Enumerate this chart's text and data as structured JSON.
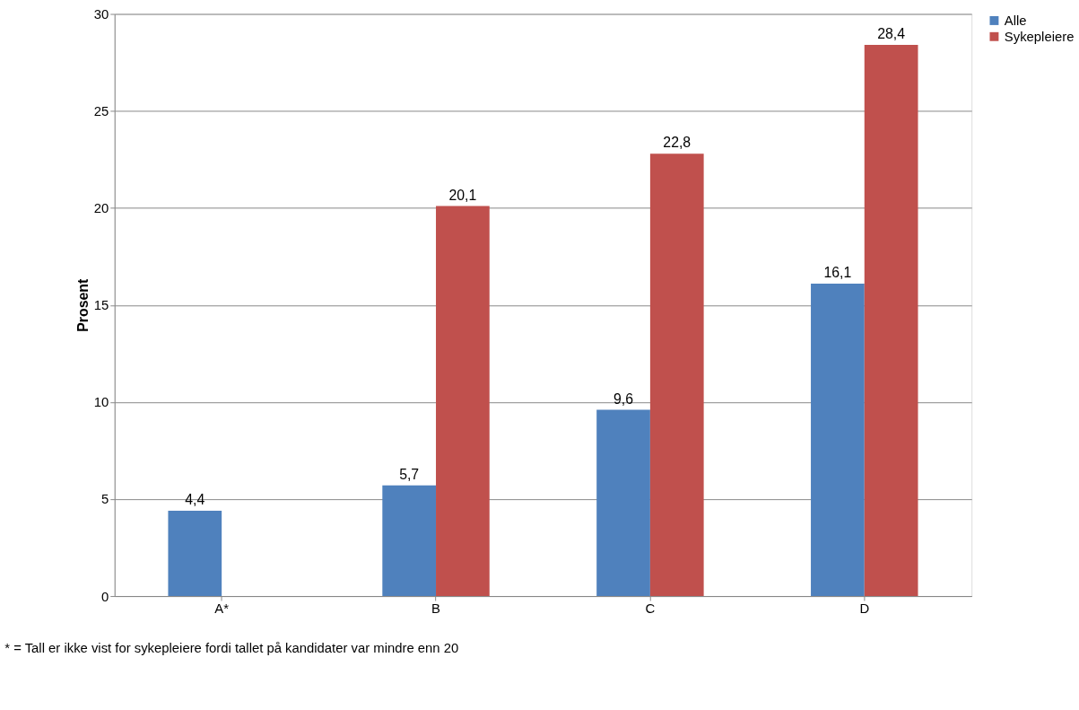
{
  "chart_data": {
    "type": "bar",
    "ylabel": "Prosent",
    "categories": [
      "A*",
      "B",
      "C",
      "D"
    ],
    "series": [
      {
        "name": "Alle",
        "color": "#4f81bd",
        "values": [
          4.4,
          5.7,
          9.6,
          16.1
        ],
        "value_labels": [
          "4,4",
          "5,7",
          "9,6",
          "16,1"
        ]
      },
      {
        "name": "Sykepleiere",
        "color": "#c0504d",
        "values": [
          null,
          20.1,
          22.8,
          28.4
        ],
        "value_labels": [
          null,
          "20,1",
          "22,8",
          "28,4"
        ]
      }
    ],
    "ylim": [
      0,
      30
    ],
    "yticks": [
      0,
      5,
      10,
      15,
      20,
      25,
      30
    ],
    "grid": "y",
    "legend": "right",
    "annotations": [
      "* = Tall er ikke vist for sykepleiere fordi tallet på kandidater var mindre enn 20"
    ]
  }
}
